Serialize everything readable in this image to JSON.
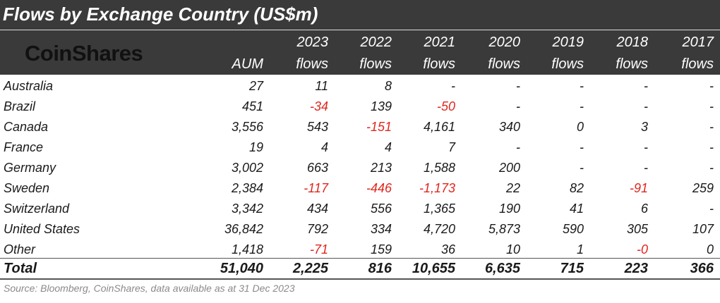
{
  "chart_data": {
    "type": "table",
    "title": "Flows by Exchange Country (US$m)",
    "logo_text": "CoinShares",
    "columns": [
      {
        "top": "",
        "bottom": "AUM"
      },
      {
        "top": "2023",
        "bottom": "flows"
      },
      {
        "top": "2022",
        "bottom": "flows"
      },
      {
        "top": "2021",
        "bottom": "flows"
      },
      {
        "top": "2020",
        "bottom": "flows"
      },
      {
        "top": "2019",
        "bottom": "flows"
      },
      {
        "top": "2018",
        "bottom": "flows"
      },
      {
        "top": "2017",
        "bottom": "flows"
      }
    ],
    "rows": [
      {
        "label": "Australia",
        "values": [
          "27",
          "11",
          "8",
          "-",
          "-",
          "-",
          "-",
          "-"
        ]
      },
      {
        "label": "Brazil",
        "values": [
          "451",
          "-34",
          "139",
          "-50",
          "-",
          "-",
          "-",
          "-"
        ]
      },
      {
        "label": "Canada",
        "values": [
          "3,556",
          "543",
          "-151",
          "4,161",
          "340",
          "0",
          "3",
          "-"
        ]
      },
      {
        "label": "France",
        "values": [
          "19",
          "4",
          "4",
          "7",
          "-",
          "-",
          "-",
          "-"
        ]
      },
      {
        "label": "Germany",
        "values": [
          "3,002",
          "663",
          "213",
          "1,588",
          "200",
          "-",
          "-",
          "-"
        ]
      },
      {
        "label": "Sweden",
        "values": [
          "2,384",
          "-117",
          "-446",
          "-1,173",
          "22",
          "82",
          "-91",
          "259"
        ]
      },
      {
        "label": "Switzerland",
        "values": [
          "3,342",
          "434",
          "556",
          "1,365",
          "190",
          "41",
          "6",
          "-"
        ]
      },
      {
        "label": "United States",
        "values": [
          "36,842",
          "792",
          "334",
          "4,720",
          "5,873",
          "590",
          "305",
          "107"
        ]
      },
      {
        "label": "Other",
        "values": [
          "1,418",
          "-71",
          "159",
          "36",
          "10",
          "1",
          "-0",
          "0"
        ]
      }
    ],
    "total": {
      "label": "Total",
      "values": [
        "51,040",
        "2,225",
        "816",
        "10,655",
        "6,635",
        "715",
        "223",
        "366"
      ]
    },
    "source": "Source: Bloomberg, CoinShares, data available as at 31 Dec 2023",
    "colors": {
      "header_bg": "#3a3a3a",
      "header_text": "#ffffff",
      "negative": "#e0261e",
      "source_text": "#8a8a8a"
    }
  }
}
